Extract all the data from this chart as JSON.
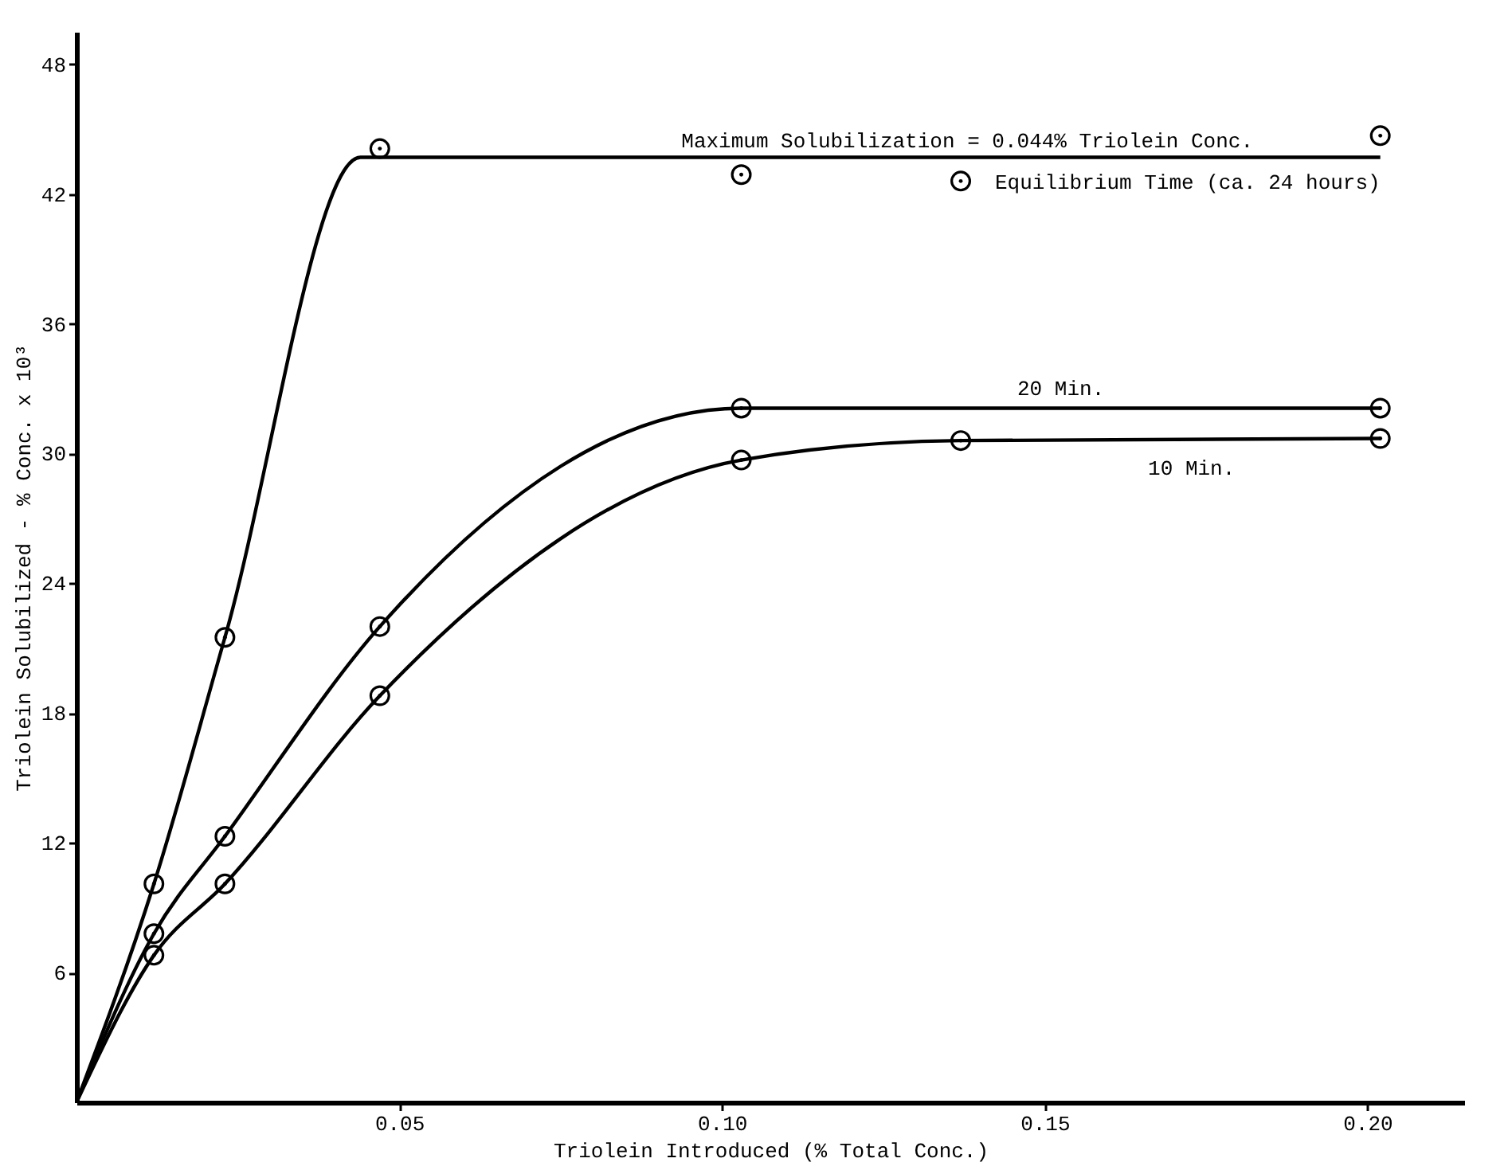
{
  "chart_data": {
    "type": "line",
    "xlabel": "Triolein Introduced (% Total Conc.)",
    "ylabel": "Triolein Solubilized - % Conc. x 10³",
    "xlim": [
      0,
      0.215
    ],
    "ylim": [
      0,
      49.5
    ],
    "xticks": [
      {
        "value": 0.05,
        "label": "0.05"
      },
      {
        "value": 0.1,
        "label": "0.10"
      },
      {
        "value": 0.15,
        "label": "0.15"
      },
      {
        "value": 0.2,
        "label": "0.20"
      }
    ],
    "yticks": [
      6,
      12,
      18,
      24,
      30,
      36,
      42,
      48
    ],
    "grid": false,
    "series": [
      {
        "name": "Equilibrium Time (ca. 24 hours)",
        "color": "#000000",
        "marker": "none",
        "line_style": "solid",
        "x": [
          0,
          0.012,
          0.023,
          0.044,
          0.202
        ],
        "values": [
          0,
          10.1,
          21.5,
          43.7,
          43.7
        ]
      },
      {
        "type": "scatter",
        "color": "#000000",
        "marker": "circle",
        "x": [
          0.012,
          0.023,
          0.047,
          0.103,
          0.137,
          0.202
        ],
        "values": [
          10.1,
          21.5,
          44.1,
          42.9,
          42.6,
          44.7
        ]
      },
      {
        "name": "20 Min.",
        "color": "#000000",
        "marker": "none",
        "line_style": "solid",
        "x": [
          0,
          0.012,
          0.023,
          0.047,
          0.103,
          0.202
        ],
        "values": [
          0,
          7.8,
          12.3,
          22.0,
          32.1,
          32.1
        ]
      },
      {
        "type": "scatter",
        "color": "#000000",
        "marker": "circle",
        "x": [
          0.012,
          0.023,
          0.047,
          0.103,
          0.202
        ],
        "values": [
          7.8,
          12.3,
          22.0,
          32.1,
          32.1
        ]
      },
      {
        "name": "10 Min.",
        "color": "#000000",
        "marker": "none",
        "line_style": "solid",
        "x": [
          0,
          0.012,
          0.023,
          0.047,
          0.103,
          0.137,
          0.202
        ],
        "values": [
          0,
          6.8,
          10.1,
          18.8,
          29.7,
          30.6,
          30.7
        ]
      },
      {
        "type": "scatter",
        "color": "#000000",
        "marker": "circle",
        "x": [
          0.012,
          0.023,
          0.047,
          0.103,
          0.137,
          0.202
        ],
        "values": [
          6.8,
          10.1,
          18.8,
          29.7,
          30.6,
          30.7
        ]
      }
    ],
    "annotations": [
      {
        "text": "Maximum Solubilization = 0.044% Triolein Conc.",
        "x": 0.138,
        "y": 43.7
      }
    ]
  }
}
